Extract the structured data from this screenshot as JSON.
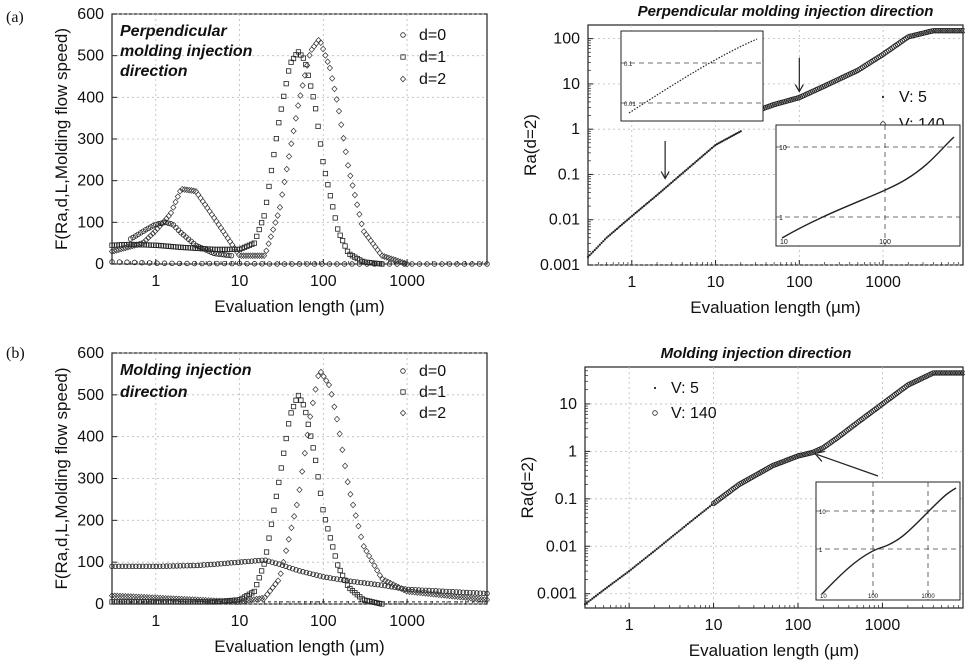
{
  "panels": [
    {
      "id": "a",
      "label": "(a)"
    },
    {
      "id": "b",
      "label": "(b)"
    }
  ],
  "chart_data": [
    {
      "id": "a-left",
      "type": "scatter",
      "title": "Perpendicular molding injection direction",
      "title_lines": [
        "Perpendicular",
        "molding injection",
        "direction"
      ],
      "xlabel": "Evaluation length (µm)",
      "ylabel": "F(Ra,d,L,Molding flow speed)",
      "xscale": "log",
      "xlim": [
        0.3,
        9000
      ],
      "ylim": [
        0,
        600
      ],
      "xticks": [
        1,
        10,
        100,
        1000
      ],
      "xtick_labels": [
        "1",
        "10",
        "100",
        "1000"
      ],
      "yticks": [
        0,
        100,
        200,
        300,
        400,
        500,
        600
      ],
      "ytick_labels": [
        "0",
        "100",
        "200",
        "300",
        "400",
        "500",
        "600"
      ],
      "grid": true,
      "legend_position": "top-right",
      "series": [
        {
          "name": "d=0",
          "marker": "circle",
          "x": [
            0.3,
            0.5,
            1,
            3,
            10,
            30,
            100,
            1000,
            9000
          ],
          "y": [
            5,
            4,
            2,
            1,
            1,
            0,
            0,
            0,
            0
          ]
        },
        {
          "name": "d=1",
          "marker": "square",
          "x": [
            0.3,
            0.5,
            1,
            2,
            5,
            10,
            15,
            20,
            30,
            40,
            50,
            60,
            80,
            100,
            150,
            200,
            300,
            500
          ],
          "y": [
            45,
            47,
            45,
            40,
            35,
            35,
            50,
            120,
            350,
            480,
            510,
            490,
            380,
            240,
            80,
            25,
            5,
            0
          ]
        },
        {
          "name": "d=2",
          "marker": "diamond",
          "x": [
            0.3,
            0.7,
            1,
            1.5,
            2,
            3,
            5,
            10,
            20,
            30,
            50,
            70,
            90,
            120,
            150,
            200,
            300,
            500,
            1000
          ],
          "y": [
            30,
            50,
            80,
            120,
            180,
            175,
            110,
            20,
            20,
            130,
            380,
            510,
            540,
            470,
            380,
            230,
            80,
            20,
            0
          ]
        },
        {
          "name": "",
          "marker": "circle",
          "x": [
            0.5,
            0.8,
            1,
            1.3,
            1.6,
            2,
            3,
            5,
            8
          ],
          "y": [
            60,
            85,
            95,
            100,
            95,
            75,
            45,
            25,
            20
          ]
        }
      ]
    },
    {
      "id": "a-right",
      "type": "scatter",
      "title": "Perpendicular molding injection direction",
      "xlabel": "Evaluation length (µm)",
      "ylabel": "Ra(d=2)",
      "xscale": "log",
      "yscale": "log",
      "xlim": [
        0.3,
        9000
      ],
      "ylim": [
        0.001,
        200
      ],
      "xticks": [
        1,
        10,
        100,
        1000
      ],
      "xtick_labels": [
        "1",
        "10",
        "100",
        "1000"
      ],
      "yticks": [
        0.001,
        0.01,
        0.1,
        1,
        10,
        100
      ],
      "ytick_labels": [
        "0.001",
        "0.01",
        "0.1",
        "1",
        "10",
        "100"
      ],
      "grid": true,
      "legend_position": "right",
      "series": [
        {
          "name": "V: 5",
          "marker": "dot",
          "x": [
            0.3,
            0.5,
            1,
            2,
            5,
            10,
            20
          ],
          "y": [
            0.0015,
            0.004,
            0.012,
            0.035,
            0.15,
            0.45,
            0.9
          ]
        },
        {
          "name": "V: 140",
          "marker": "circle",
          "x": [
            30,
            50,
            100,
            200,
            500,
            1000,
            2000,
            4000,
            9000
          ],
          "y": [
            2.5,
            3.5,
            5,
            9,
            20,
            45,
            110,
            150,
            150
          ]
        }
      ],
      "annotations": [
        "arrow at x≈2.5",
        "arrow at x≈100"
      ],
      "insets": [
        {
          "position": "top-left",
          "ytick_labels": [
            "0.1",
            "0.01"
          ]
        },
        {
          "position": "bottom-right",
          "xtick_labels": [
            "10",
            "100"
          ],
          "ytick_labels": [
            "10",
            "1"
          ]
        }
      ]
    },
    {
      "id": "b-left",
      "type": "scatter",
      "title": "Molding injection direction",
      "title_lines": [
        "Molding injection",
        "direction"
      ],
      "xlabel": "Evaluation length (µm)",
      "ylabel": "F(Ra,d,L,Molding flow speed)",
      "xscale": "log",
      "xlim": [
        0.3,
        9000
      ],
      "ylim": [
        0,
        600
      ],
      "xticks": [
        1,
        10,
        100,
        1000
      ],
      "xtick_labels": [
        "1",
        "10",
        "100",
        "1000"
      ],
      "yticks": [
        0,
        100,
        200,
        300,
        400,
        500,
        600
      ],
      "ytick_labels": [
        "0",
        "100",
        "200",
        "300",
        "400",
        "500",
        "600"
      ],
      "grid": true,
      "legend_position": "top-right",
      "series": [
        {
          "name": "d=0",
          "marker": "circle",
          "x": [
            0.3,
            1,
            3,
            5,
            10,
            20,
            30,
            50,
            100,
            200,
            500,
            1000,
            3000,
            9000
          ],
          "y": [
            90,
            90,
            92,
            95,
            100,
            105,
            95,
            80,
            65,
            55,
            45,
            35,
            30,
            25
          ]
        },
        {
          "name": "d=1",
          "marker": "square",
          "x": [
            0.3,
            5,
            10,
            15,
            20,
            30,
            40,
            50,
            60,
            80,
            100,
            150,
            200,
            300,
            500
          ],
          "y": [
            5,
            5,
            10,
            30,
            100,
            300,
            450,
            500,
            470,
            350,
            220,
            90,
            40,
            10,
            0
          ]
        },
        {
          "name": "d=2",
          "marker": "diamond",
          "x": [
            0.3,
            10,
            20,
            30,
            50,
            70,
            90,
            120,
            150,
            200,
            300,
            500,
            1000,
            3000,
            9000
          ],
          "y": [
            20,
            5,
            15,
            60,
            250,
            450,
            560,
            520,
            430,
            280,
            140,
            60,
            30,
            20,
            10
          ]
        }
      ]
    },
    {
      "id": "b-right",
      "type": "scatter",
      "title": "Molding injection direction",
      "xlabel": "Evaluation length (µm)",
      "ylabel": "Ra(d=2)",
      "xscale": "log",
      "yscale": "log",
      "xlim": [
        0.3,
        9000
      ],
      "ylim": [
        0.0005,
        60
      ],
      "xticks": [
        1,
        10,
        100,
        1000
      ],
      "xtick_labels": [
        "1",
        "10",
        "100",
        "1000"
      ],
      "yticks": [
        0.001,
        0.01,
        0.1,
        1,
        10
      ],
      "ytick_labels": [
        "0.001",
        "0.01",
        "0.1",
        "1",
        "10"
      ],
      "grid": true,
      "legend_position": "top-left",
      "series": [
        {
          "name": "V: 5",
          "marker": "dot",
          "x": [
            0.3,
            0.5,
            1,
            2,
            5,
            10
          ],
          "y": [
            0.0006,
            0.0012,
            0.003,
            0.008,
            0.03,
            0.08
          ]
        },
        {
          "name": "V: 140",
          "marker": "circle",
          "x": [
            10,
            20,
            50,
            100,
            150,
            200,
            300,
            500,
            1000,
            2000,
            4000,
            9000
          ],
          "y": [
            0.08,
            0.2,
            0.5,
            0.8,
            0.95,
            1.2,
            2,
            4,
            10,
            25,
            45,
            45
          ]
        }
      ],
      "annotations": [
        "arrow at x≈150"
      ],
      "insets": [
        {
          "position": "bottom-right",
          "xtick_labels": [
            "10",
            "100",
            "1000"
          ],
          "ytick_labels": [
            "10",
            "1"
          ]
        }
      ]
    }
  ]
}
